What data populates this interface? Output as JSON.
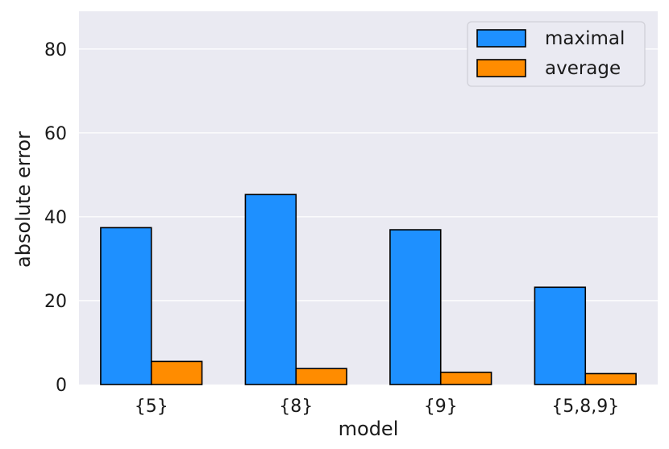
{
  "chart_data": {
    "type": "bar",
    "categories": [
      "{5}",
      "{8}",
      "{9}",
      "{5,8,9}"
    ],
    "series": [
      {
        "name": "maximal",
        "color": "#1e90ff",
        "values": [
          37.4,
          45.3,
          36.9,
          23.2
        ]
      },
      {
        "name": "average",
        "color": "#ff8c00",
        "values": [
          5.5,
          3.8,
          2.9,
          2.6
        ]
      }
    ],
    "xlabel": "model",
    "ylabel": "absolute error",
    "ylim": [
      0,
      89
    ],
    "yticks": [
      0,
      20,
      40,
      60,
      80
    ],
    "grid": true,
    "background": "#eaeaf2",
    "legend_position": "top-right"
  }
}
